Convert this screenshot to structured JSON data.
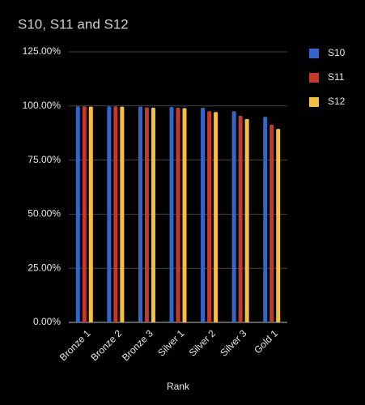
{
  "chart_data": {
    "type": "bar",
    "title": "S10, S11 and S12",
    "x_label": "Rank",
    "categories": [
      "Bronze 1",
      "Bronze 2",
      "Bronze 3",
      "Silver 1",
      "Silver 2",
      "Silver 3",
      "Gold 1"
    ],
    "series": [
      {
        "name": "S10",
        "color": "#3366cc",
        "values": [
          99.8,
          99.8,
          99.7,
          99.5,
          99.2,
          97.6,
          95.0
        ]
      },
      {
        "name": "S11",
        "color": "#c5392a",
        "values": [
          99.8,
          99.8,
          99.3,
          99.2,
          97.6,
          95.5,
          91.4
        ]
      },
      {
        "name": "S12",
        "color": "#f5c042",
        "values": [
          99.7,
          99.7,
          99.2,
          99.0,
          97.2,
          94.0,
          89.4
        ]
      }
    ],
    "ylim": [
      0,
      125
    ],
    "yticks": [
      {
        "value": 0,
        "label": "0.00%"
      },
      {
        "value": 25,
        "label": "25.00%"
      },
      {
        "value": 50,
        "label": "50.00%"
      },
      {
        "value": 75,
        "label": "75.00%"
      },
      {
        "value": 100,
        "label": "100.00%"
      },
      {
        "value": 125,
        "label": "125.00%"
      }
    ],
    "grid": true,
    "legend": "right"
  }
}
